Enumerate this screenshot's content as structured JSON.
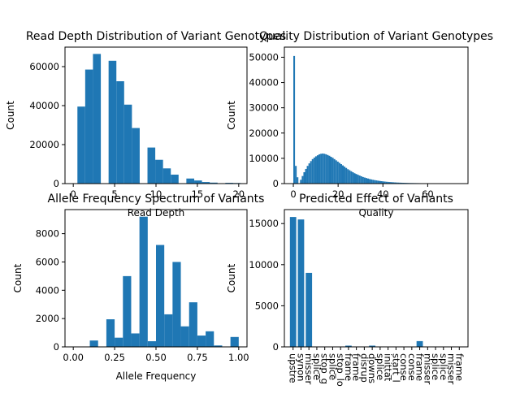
{
  "colors": {
    "bar": "#1f77b4",
    "axis": "#000000",
    "background": "#ffffff"
  },
  "chart_data": [
    {
      "type": "bar",
      "title": "Read Depth Distribution of Variant Genotypes",
      "xlabel": "Read Depth",
      "ylabel": "Count",
      "xlim": [
        -1,
        21
      ],
      "ylim": [
        0,
        70000
      ],
      "xticks": [
        "0",
        "5",
        "10",
        "15",
        "20"
      ],
      "yticks": [
        "0",
        "20000",
        "40000",
        "60000"
      ],
      "bins": [
        {
          "x0": 0.5,
          "x1": 1.44,
          "value": 39500
        },
        {
          "x0": 1.44,
          "x1": 2.38,
          "value": 58500
        },
        {
          "x0": 2.38,
          "x1": 3.33,
          "value": 66500
        },
        {
          "x0": 3.33,
          "x1": 4.27,
          "value": 0
        },
        {
          "x0": 4.27,
          "x1": 5.21,
          "value": 63000
        },
        {
          "x0": 5.21,
          "x1": 6.15,
          "value": 52500
        },
        {
          "x0": 6.15,
          "x1": 7.09,
          "value": 40500
        },
        {
          "x0": 7.09,
          "x1": 8.03,
          "value": 28500
        },
        {
          "x0": 8.03,
          "x1": 8.97,
          "value": 0
        },
        {
          "x0": 8.97,
          "x1": 9.91,
          "value": 18500
        },
        {
          "x0": 9.91,
          "x1": 10.85,
          "value": 12200
        },
        {
          "x0": 10.85,
          "x1": 11.79,
          "value": 7800
        },
        {
          "x0": 11.79,
          "x1": 12.73,
          "value": 4600
        },
        {
          "x0": 12.73,
          "x1": 13.67,
          "value": 0
        },
        {
          "x0": 13.67,
          "x1": 14.62,
          "value": 2600
        },
        {
          "x0": 14.62,
          "x1": 15.56,
          "value": 1600
        },
        {
          "x0": 15.56,
          "x1": 16.5,
          "value": 800
        },
        {
          "x0": 16.5,
          "x1": 17.44,
          "value": 500
        },
        {
          "x0": 17.44,
          "x1": 18.38,
          "value": 0
        },
        {
          "x0": 18.38,
          "x1": 19.32,
          "value": 400
        },
        {
          "x0": 19.32,
          "x1": 20.26,
          "value": 300
        }
      ]
    },
    {
      "type": "bar",
      "title": "Quality Distribution of Variant Genotypes",
      "xlabel": "Quality",
      "ylabel": "Count",
      "xlim": [
        -4,
        78
      ],
      "ylim": [
        0,
        54000
      ],
      "xticks": [
        "0",
        "20",
        "40",
        "60"
      ],
      "yticks": [
        "0",
        "10000",
        "20000",
        "30000",
        "40000",
        "50000"
      ],
      "bin_start": 0,
      "bin_width": 0.75,
      "values": [
        50500,
        7000,
        2500,
        0,
        1500,
        3000,
        4500,
        5800,
        7000,
        8000,
        8900,
        9700,
        10300,
        10800,
        11200,
        11600,
        11800,
        11900,
        11800,
        11600,
        11300,
        11000,
        10600,
        10200,
        9700,
        9200,
        8700,
        8200,
        7700,
        7200,
        6700,
        6200,
        5700,
        5300,
        4900,
        4500,
        4100,
        3800,
        3500,
        3200,
        2900,
        2600,
        2400,
        2200,
        2000,
        1800,
        1650,
        1500,
        1380,
        1260,
        1150,
        1050,
        960,
        880,
        800,
        730,
        670,
        610,
        560,
        510,
        470,
        430,
        400,
        370,
        340,
        310,
        290,
        270,
        250,
        230,
        220,
        210,
        200,
        190,
        180,
        170,
        160,
        150,
        140,
        130,
        120,
        110,
        100,
        95,
        90,
        85,
        80,
        75,
        70,
        65,
        60,
        55,
        50,
        45,
        40,
        35,
        30,
        25
      ]
    },
    {
      "type": "bar",
      "title": "Allele Frequency Spectrum of Variants",
      "xlabel": "Allele Frequency",
      "ylabel": "Count",
      "xlim": [
        -0.05,
        1.05
      ],
      "ylim": [
        0,
        9700
      ],
      "xticks": [
        "0.00",
        "0.25",
        "0.50",
        "0.75",
        "1.00"
      ],
      "yticks": [
        "0",
        "2000",
        "4000",
        "6000",
        "8000"
      ],
      "bins": [
        {
          "x0": 0.1,
          "x1": 0.15,
          "value": 450
        },
        {
          "x0": 0.2,
          "x1": 0.25,
          "value": 1950
        },
        {
          "x0": 0.25,
          "x1": 0.3,
          "value": 650
        },
        {
          "x0": 0.3,
          "x1": 0.35,
          "value": 5000
        },
        {
          "x0": 0.35,
          "x1": 0.4,
          "value": 950
        },
        {
          "x0": 0.4,
          "x1": 0.45,
          "value": 9200
        },
        {
          "x0": 0.45,
          "x1": 0.5,
          "value": 400
        },
        {
          "x0": 0.5,
          "x1": 0.55,
          "value": 7200
        },
        {
          "x0": 0.55,
          "x1": 0.6,
          "value": 2300
        },
        {
          "x0": 0.6,
          "x1": 0.65,
          "value": 6000
        },
        {
          "x0": 0.65,
          "x1": 0.7,
          "value": 1450
        },
        {
          "x0": 0.7,
          "x1": 0.75,
          "value": 3150
        },
        {
          "x0": 0.75,
          "x1": 0.8,
          "value": 800
        },
        {
          "x0": 0.8,
          "x1": 0.85,
          "value": 1100
        },
        {
          "x0": 0.85,
          "x1": 0.9,
          "value": 100
        },
        {
          "x0": 0.95,
          "x1": 1.0,
          "value": 700
        }
      ]
    },
    {
      "type": "bar",
      "title": "Predicted Effect of Variants",
      "xlabel": "",
      "ylabel": "Count",
      "ylim": [
        0,
        16700
      ],
      "yticks": [
        "0",
        "5000",
        "10000",
        "15000"
      ],
      "categories": [
        "upstre",
        "synon",
        "misser",
        "splice",
        "stop_g",
        "splice",
        "stop_lo",
        "frame",
        "frame",
        "disrup",
        "downs",
        "splice",
        "inittat",
        "start_l",
        "conse",
        "conse",
        "frame",
        "misser",
        "splice",
        "splice",
        "misser",
        "frame"
      ],
      "values": [
        15800,
        15500,
        9000,
        50,
        30,
        20,
        30,
        150,
        50,
        20,
        150,
        30,
        20,
        10,
        10,
        10,
        700,
        20,
        10,
        10,
        10,
        10
      ]
    }
  ]
}
